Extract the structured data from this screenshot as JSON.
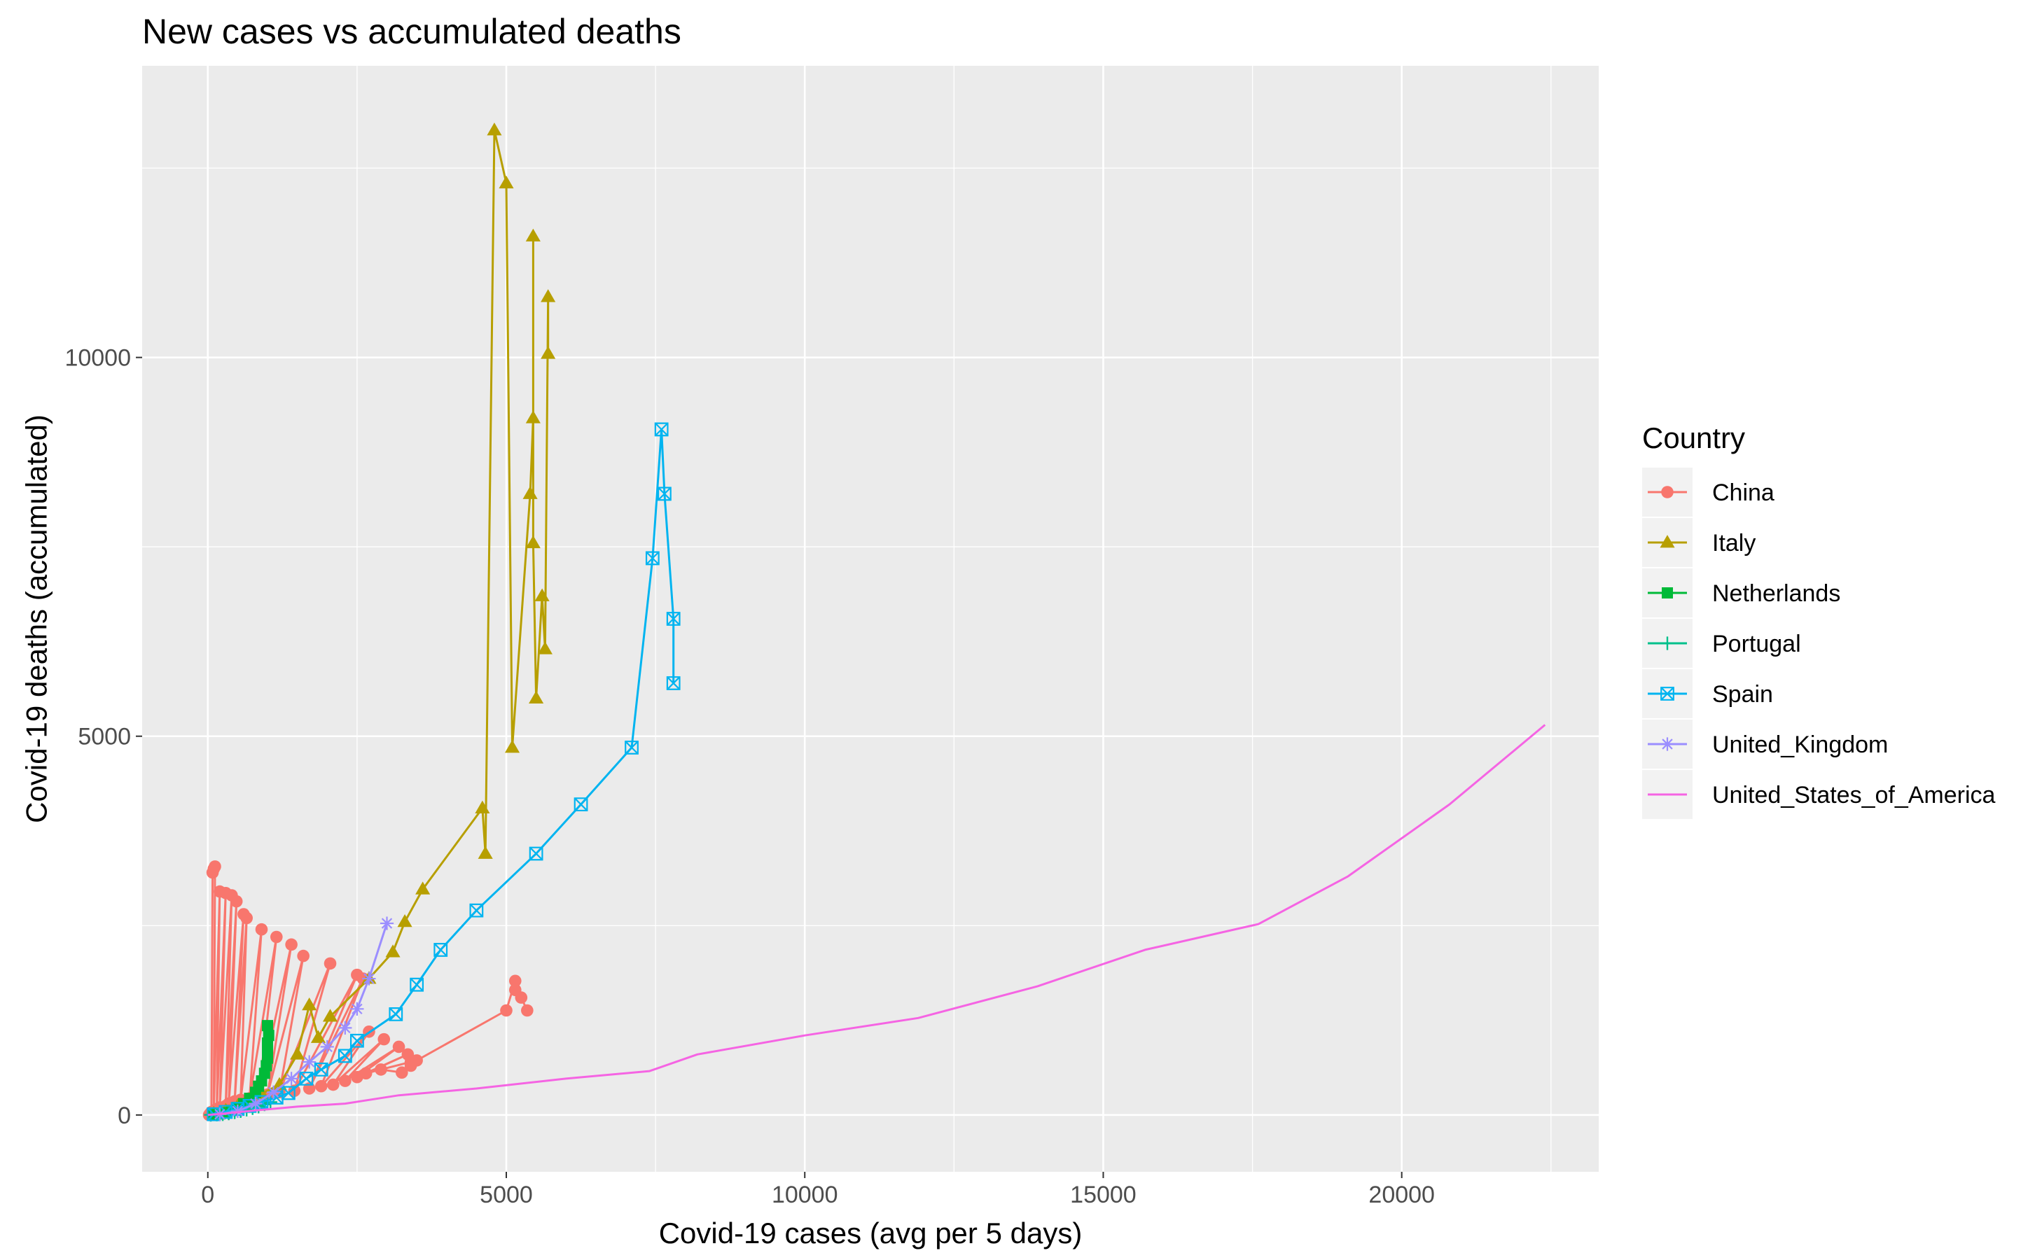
{
  "chart_data": {
    "type": "line",
    "title": "New cases vs accumulated deaths",
    "xlabel": "Covid-19 cases (avg per 5 days)",
    "ylabel": "Covid-19 deaths (accumulated)",
    "xlim": [
      -1100,
      23300
    ],
    "ylim": [
      -750,
      13850
    ],
    "xticks": [
      0,
      5000,
      10000,
      15000,
      20000
    ],
    "xtick_labels": [
      "0",
      "5000",
      "10000",
      "15000",
      "20000"
    ],
    "yticks": [
      0,
      5000,
      10000
    ],
    "ytick_labels": [
      "0",
      "5000",
      "10000"
    ],
    "grid": true,
    "background": "#ebebeb",
    "legend": {
      "title": "Country",
      "position": "right"
    },
    "series": [
      {
        "name": "China",
        "color": "#F8766D",
        "marker": "circle",
        "line": true,
        "points": [
          [
            20,
            0
          ],
          [
            40,
            20
          ],
          [
            60,
            40
          ],
          [
            80,
            3200
          ],
          [
            100,
            3250
          ],
          [
            120,
            3280
          ],
          [
            100,
            50
          ],
          [
            200,
            2950
          ],
          [
            150,
            80
          ],
          [
            300,
            2930
          ],
          [
            200,
            100
          ],
          [
            400,
            2900
          ],
          [
            300,
            120
          ],
          [
            480,
            2820
          ],
          [
            350,
            150
          ],
          [
            600,
            2650
          ],
          [
            450,
            180
          ],
          [
            650,
            2600
          ],
          [
            550,
            200
          ],
          [
            900,
            2450
          ],
          [
            700,
            220
          ],
          [
            1150,
            2350
          ],
          [
            850,
            250
          ],
          [
            1400,
            2250
          ],
          [
            1000,
            270
          ],
          [
            1600,
            2100
          ],
          [
            1200,
            300
          ],
          [
            2050,
            2000
          ],
          [
            1450,
            320
          ],
          [
            2500,
            1850
          ],
          [
            1700,
            350
          ],
          [
            2600,
            1800
          ],
          [
            1900,
            380
          ],
          [
            2700,
            1100
          ],
          [
            2100,
            400
          ],
          [
            2950,
            1000
          ],
          [
            2300,
            450
          ],
          [
            3200,
            900
          ],
          [
            2500,
            500
          ],
          [
            3350,
            800
          ],
          [
            2650,
            550
          ],
          [
            3400,
            700
          ],
          [
            2900,
            600
          ],
          [
            3250,
            560
          ],
          [
            3400,
            650
          ],
          [
            3500,
            720
          ],
          [
            5000,
            1380
          ],
          [
            5150,
            1770
          ],
          [
            5150,
            1650
          ],
          [
            5250,
            1550
          ],
          [
            5350,
            1380
          ]
        ]
      },
      {
        "name": "Italy",
        "color": "#B79F00",
        "marker": "triangle",
        "line": true,
        "points": [
          [
            100,
            20
          ],
          [
            300,
            60
          ],
          [
            500,
            120
          ],
          [
            700,
            200
          ],
          [
            900,
            280
          ],
          [
            1200,
            400
          ],
          [
            1500,
            800
          ],
          [
            1700,
            1450
          ],
          [
            1850,
            1020
          ],
          [
            2050,
            1300
          ],
          [
            2700,
            1800
          ],
          [
            3100,
            2150
          ],
          [
            3300,
            2550
          ],
          [
            3600,
            2980
          ],
          [
            4600,
            4050
          ],
          [
            4650,
            3450
          ],
          [
            4800,
            13000
          ],
          [
            5000,
            12300
          ],
          [
            5100,
            4850
          ],
          [
            5400,
            8200
          ],
          [
            5450,
            9200
          ],
          [
            5450,
            11600
          ],
          [
            5450,
            7550
          ],
          [
            5500,
            5500
          ],
          [
            5600,
            6850
          ],
          [
            5650,
            6150
          ],
          [
            5700,
            10800
          ],
          [
            5700,
            10050
          ]
        ]
      },
      {
        "name": "Netherlands",
        "color": "#00BA38",
        "marker": "square",
        "line": true,
        "points": [
          [
            100,
            5
          ],
          [
            200,
            15
          ],
          [
            300,
            30
          ],
          [
            400,
            60
          ],
          [
            500,
            100
          ],
          [
            600,
            150
          ],
          [
            700,
            220
          ],
          [
            800,
            300
          ],
          [
            850,
            380
          ],
          [
            900,
            450
          ],
          [
            950,
            550
          ],
          [
            980,
            650
          ],
          [
            1000,
            750
          ],
          [
            1000,
            850
          ],
          [
            1000,
            950
          ],
          [
            1020,
            1050
          ],
          [
            1000,
            1180
          ]
        ]
      },
      {
        "name": "Portugal",
        "color": "#00C08B",
        "marker": "plus",
        "line": true,
        "points": [
          [
            50,
            2
          ],
          [
            150,
            5
          ],
          [
            250,
            10
          ],
          [
            350,
            20
          ],
          [
            450,
            35
          ],
          [
            550,
            50
          ],
          [
            650,
            70
          ],
          [
            750,
            90
          ],
          [
            850,
            110
          ],
          [
            950,
            140
          ],
          [
            1050,
            170
          ]
        ]
      },
      {
        "name": "Spain",
        "color": "#00B4F0",
        "marker": "square-x",
        "line": true,
        "points": [
          [
            100,
            10
          ],
          [
            300,
            40
          ],
          [
            500,
            80
          ],
          [
            700,
            120
          ],
          [
            900,
            170
          ],
          [
            1150,
            230
          ],
          [
            1350,
            290
          ],
          [
            1650,
            480
          ],
          [
            1900,
            600
          ],
          [
            2300,
            780
          ],
          [
            2500,
            980
          ],
          [
            3150,
            1330
          ],
          [
            3500,
            1720
          ],
          [
            3900,
            2180
          ],
          [
            4500,
            2700
          ],
          [
            5500,
            3450
          ],
          [
            6250,
            4100
          ],
          [
            7100,
            4850
          ],
          [
            7450,
            7350
          ],
          [
            7600,
            9050
          ],
          [
            7650,
            8200
          ],
          [
            7800,
            6550
          ],
          [
            7800,
            5700
          ]
        ]
      },
      {
        "name": "United_Kingdom",
        "color": "#9B8EFF",
        "marker": "asterisk",
        "line": true,
        "points": [
          [
            200,
            10
          ],
          [
            500,
            50
          ],
          [
            800,
            150
          ],
          [
            1100,
            300
          ],
          [
            1400,
            480
          ],
          [
            1700,
            700
          ],
          [
            2000,
            900
          ],
          [
            2300,
            1150
          ],
          [
            2500,
            1400
          ],
          [
            2700,
            1800
          ],
          [
            3000,
            2530
          ]
        ]
      },
      {
        "name": "United_States_of_America",
        "color": "#F564E3",
        "marker": "none",
        "line": true,
        "points": [
          [
            0,
            0
          ],
          [
            300,
            20
          ],
          [
            800,
            60
          ],
          [
            1500,
            110
          ],
          [
            2300,
            150
          ],
          [
            3200,
            260
          ],
          [
            4500,
            350
          ],
          [
            6000,
            480
          ],
          [
            7400,
            580
          ],
          [
            8200,
            800
          ],
          [
            10000,
            1050
          ],
          [
            11900,
            1280
          ],
          [
            13900,
            1700
          ],
          [
            15700,
            2180
          ],
          [
            17600,
            2520
          ],
          [
            19100,
            3150
          ],
          [
            20800,
            4100
          ],
          [
            22400,
            5150
          ]
        ]
      }
    ]
  }
}
